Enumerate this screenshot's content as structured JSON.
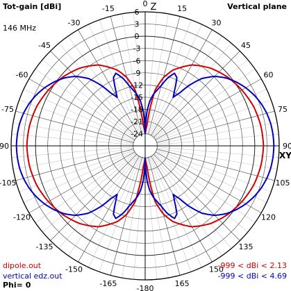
{
  "header": {
    "title": "Tot-gain [dBi]",
    "frequency": "146 MHz",
    "plane": "Vertical plane"
  },
  "footer": {
    "phi": "Phi= 0",
    "legend": [
      {
        "file": "dipole.out",
        "range": "-999 < dBi < 2.13",
        "color": "#d00000"
      },
      {
        "file": "vertical edz.out",
        "range": "-999 < dBi < 4.69",
        "color": "#0000c0"
      }
    ]
  },
  "chart_data": {
    "type": "polar",
    "axis_names": {
      "zenith": "Z",
      "horizon": "XY"
    },
    "angle_labels": [
      {
        "label": "0",
        "deg": 0
      },
      {
        "label": "15",
        "deg": 15
      },
      {
        "label": "30",
        "deg": 30
      },
      {
        "label": "45",
        "deg": 45
      },
      {
        "label": "60",
        "deg": 60
      },
      {
        "label": "75",
        "deg": 75
      },
      {
        "label": "90",
        "deg": 90
      },
      {
        "label": "105",
        "deg": 105
      },
      {
        "label": "120",
        "deg": 120
      },
      {
        "label": "135",
        "deg": 135
      },
      {
        "label": "150",
        "deg": 150
      },
      {
        "label": "165",
        "deg": 165
      },
      {
        "label": "-180",
        "deg": 180
      },
      {
        "label": "-165",
        "deg": 195
      },
      {
        "label": "-150",
        "deg": 210
      },
      {
        "label": "-135",
        "deg": 225
      },
      {
        "label": "-120",
        "deg": 240
      },
      {
        "label": "-105",
        "deg": 255
      },
      {
        "label": "-90",
        "deg": 270
      },
      {
        "label": "-75",
        "deg": 285
      },
      {
        "label": "-60",
        "deg": 300
      },
      {
        "label": "-45",
        "deg": 315
      },
      {
        "label": "-30",
        "deg": 330
      },
      {
        "label": "-15",
        "deg": 345
      }
    ],
    "radial_ticks": [
      "6",
      "3",
      "0",
      "-3",
      "-6",
      "-9",
      "-12",
      "-15",
      "-18",
      "-21",
      "-24"
    ],
    "r_range_dBi": [
      -24,
      6
    ],
    "grid_step_dB": 3,
    "angle_grid_step_deg": 15,
    "series": [
      {
        "name": "dipole.out",
        "color": "#d00000",
        "angles_deg": [
          0,
          5,
          10,
          15,
          20,
          30,
          40,
          50,
          60,
          70,
          80,
          90
        ],
        "gain_dBi": [
          -24,
          -22,
          -13.2,
          -9.6,
          -7.2,
          -4.0,
          -2.0,
          -0.6,
          0.5,
          1.4,
          1.9,
          2.13
        ]
      },
      {
        "name": "vertical edz.out",
        "color": "#0000c0",
        "angles_deg": [
          0,
          3,
          6,
          9,
          12,
          15,
          18,
          22,
          25,
          28,
          30,
          33,
          36,
          40,
          45,
          50,
          55,
          60,
          65,
          70,
          75,
          80,
          85,
          90
        ],
        "gain_dBi": [
          -24,
          -18.5,
          -15.9,
          -14.2,
          -13.0,
          -11.6,
          -9.6,
          -7.7,
          -8.5,
          -11.6,
          -13.2,
          -11.5,
          -8.6,
          -5.4,
          -2.8,
          -1.0,
          0.4,
          1.6,
          2.6,
          3.4,
          4.0,
          4.4,
          4.6,
          4.69
        ]
      }
    ]
  }
}
